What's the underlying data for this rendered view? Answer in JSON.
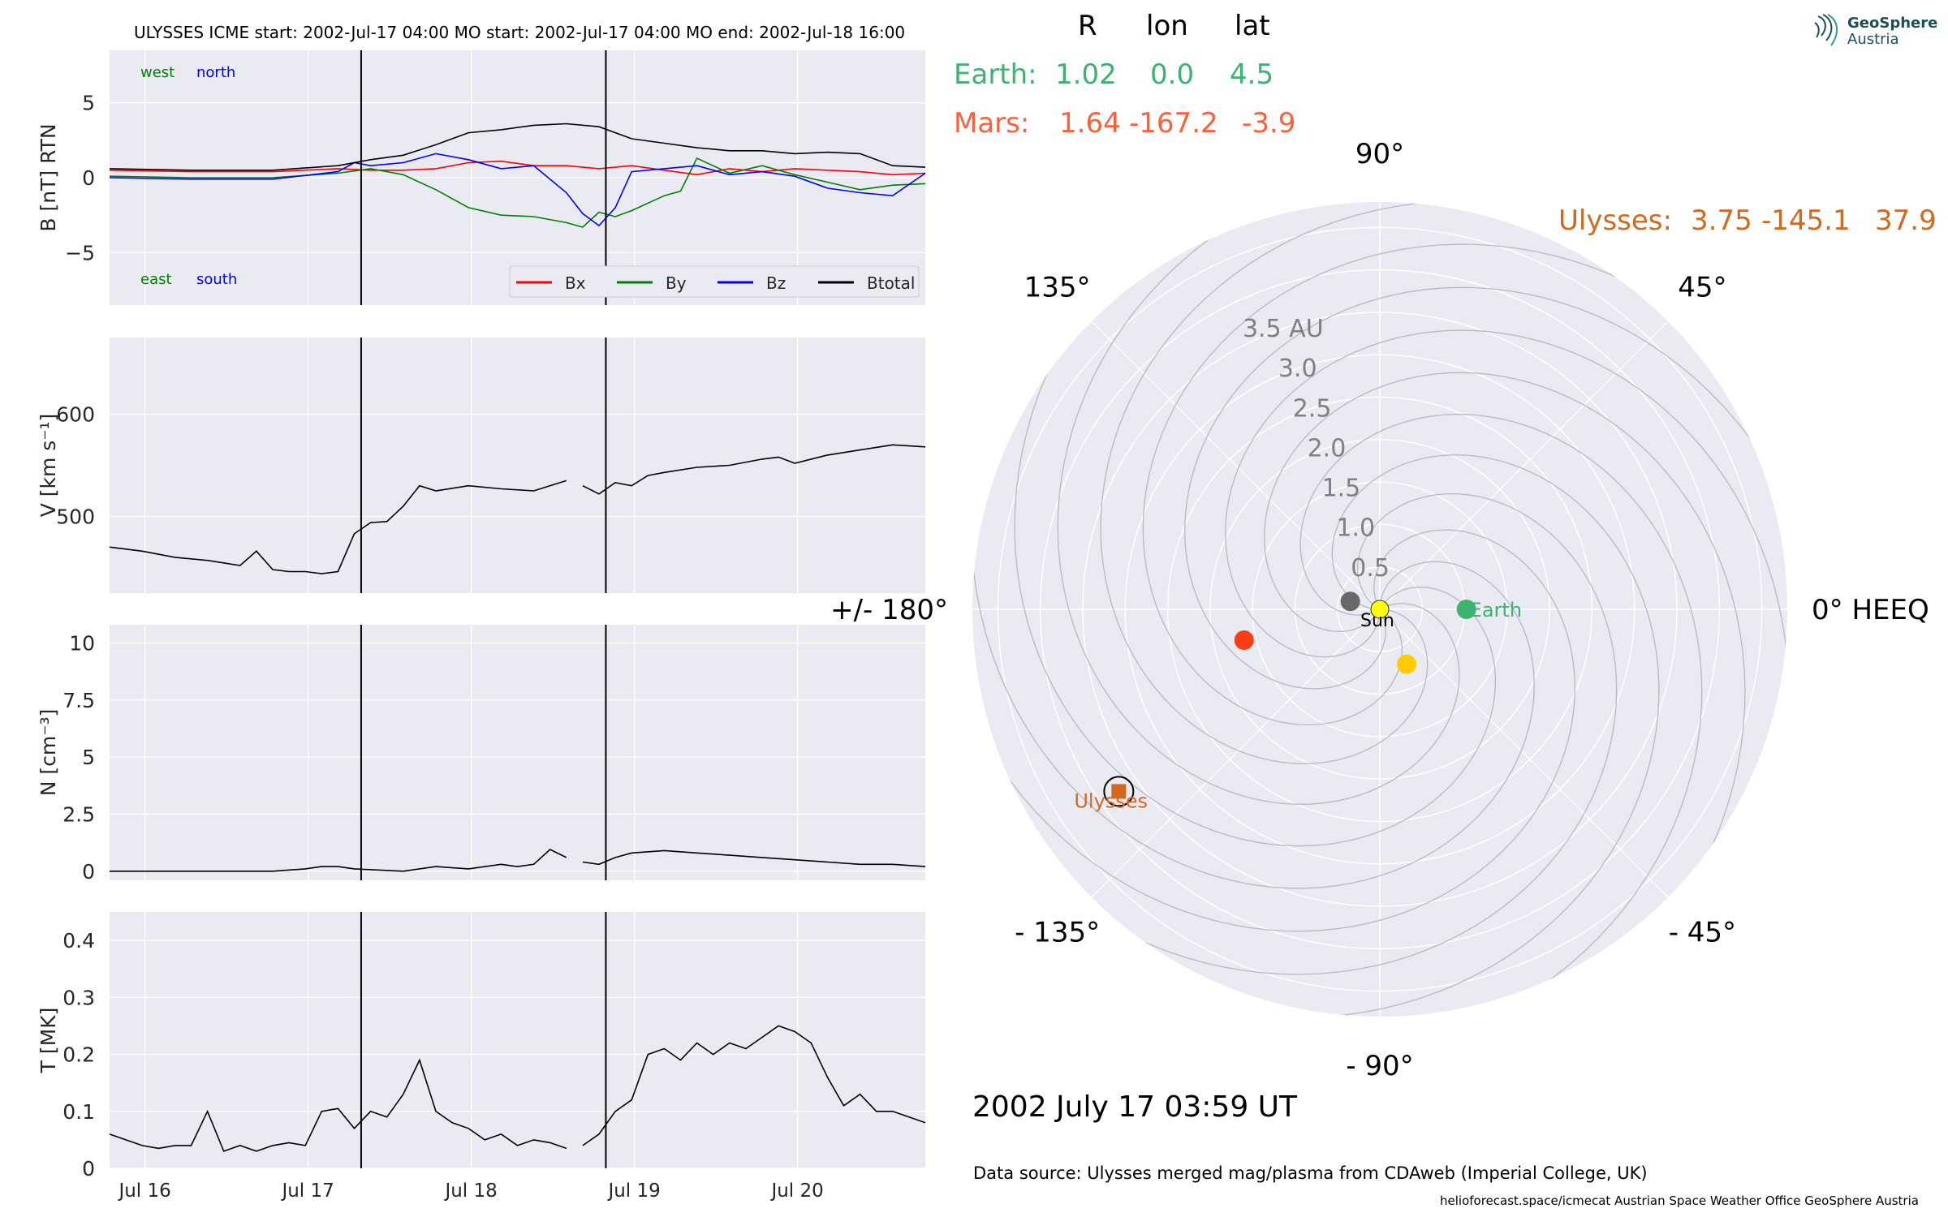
{
  "header": {
    "title": "ULYSSES    ICME start: 2002-Jul-17 04:00   MO start: 2002-Jul-17 04:00   MO end: 2002-Jul-18 16:00"
  },
  "position_table": {
    "col_headers": [
      "R",
      "lon",
      "lat"
    ],
    "earth": {
      "label": "Earth:",
      "values": [
        "1.02",
        "0.0",
        "4.5"
      ],
      "color": "#3cb371"
    },
    "mars": {
      "label": "Mars:",
      "values": [
        "1.64",
        "-167.2",
        "-3.9"
      ],
      "color": "#ff5f3c"
    },
    "ulysses": {
      "label": "Ulysses:",
      "values": [
        "3.75",
        "-145.1",
        "37.9"
      ],
      "color": "#d2691e"
    }
  },
  "logo": {
    "line1": "GeoSphere",
    "line2": "Austria",
    "icon": "geosphere-logo-icon"
  },
  "timestamp": "2002 July 17  03:59 UT",
  "data_source": "Data source: Ulysses merged mag/plasma from CDAweb (Imperial College, UK)",
  "footer_links": "helioforecast.space/icmecat   Austrian Space Weather Office   GeoSphere Austria",
  "colors": {
    "panel_bg": "#eaeaf2",
    "grid": "#ffffff",
    "bx": "#ff0000",
    "by": "#008000",
    "bz": "#0000ff",
    "btot": "#000000",
    "earth": "#3cb371",
    "mars": "#ff3c14",
    "ulysses": "#d2691e",
    "venus": "#ffcc00",
    "mercury": "#696969",
    "sun": "#ffff00"
  },
  "chart_data": [
    {
      "type": "line",
      "name": "B",
      "ylabel": "B [nT] RTN",
      "ylim": [
        -8.5,
        8.5
      ],
      "yticks": [
        -5,
        0,
        5
      ],
      "xlim": [
        0,
        5.0
      ],
      "x_unit": "days since 2002-Jul-15 15:00",
      "event_lines": [
        1.542,
        3.042
      ],
      "annotations": {
        "top_left": [
          "west",
          "north"
        ],
        "bottom_left": [
          "east",
          "south"
        ]
      },
      "legend": [
        "Bx",
        "By",
        "Bz",
        "Btotal"
      ],
      "series": [
        {
          "name": "Bx",
          "color": "#ff0000",
          "x": [
            0,
            0.5,
            1,
            1.4,
            1.6,
            1.8,
            2.0,
            2.2,
            2.4,
            2.6,
            2.8,
            3.0,
            3.2,
            3.4,
            3.6,
            3.8,
            4.0,
            4.2,
            4.4,
            4.6,
            4.8,
            5.0
          ],
          "y": [
            0.5,
            0.4,
            0.4,
            0.6,
            0.5,
            0.5,
            0.6,
            1.0,
            1.1,
            0.8,
            0.8,
            0.6,
            0.8,
            0.5,
            0.2,
            0.6,
            0.4,
            0.6,
            0.5,
            0.4,
            0.2,
            0.3
          ]
        },
        {
          "name": "By",
          "color": "#008000",
          "x": [
            0,
            0.5,
            1,
            1.4,
            1.6,
            1.8,
            2.0,
            2.2,
            2.4,
            2.6,
            2.8,
            2.9,
            3.0,
            3.1,
            3.2,
            3.4,
            3.5,
            3.6,
            3.8,
            4.0,
            4.2,
            4.4,
            4.6,
            4.8,
            5.0
          ],
          "y": [
            0.1,
            0.0,
            0.0,
            0.3,
            0.6,
            0.2,
            -0.8,
            -2.0,
            -2.5,
            -2.6,
            -3.0,
            -3.3,
            -2.3,
            -2.6,
            -2.2,
            -1.2,
            -0.9,
            1.3,
            0.3,
            0.8,
            0.2,
            -0.3,
            -0.8,
            -0.5,
            -0.4
          ]
        },
        {
          "name": "Bz",
          "color": "#0000ff",
          "x": [
            0,
            0.5,
            1,
            1.4,
            1.5,
            1.6,
            1.8,
            2.0,
            2.2,
            2.4,
            2.6,
            2.8,
            2.9,
            3.0,
            3.1,
            3.2,
            3.4,
            3.6,
            3.8,
            4.0,
            4.2,
            4.4,
            4.6,
            4.8,
            5.0
          ],
          "y": [
            0.0,
            -0.1,
            -0.1,
            0.4,
            1.0,
            0.8,
            1.0,
            1.6,
            1.2,
            0.6,
            0.8,
            -1.0,
            -2.4,
            -3.2,
            -2.0,
            0.4,
            0.6,
            0.8,
            0.2,
            0.4,
            0.1,
            -0.7,
            -1.0,
            -1.2,
            0.3
          ]
        },
        {
          "name": "Btotal",
          "color": "#000000",
          "x": [
            0,
            0.5,
            1,
            1.4,
            1.6,
            1.8,
            2.0,
            2.2,
            2.4,
            2.6,
            2.8,
            3.0,
            3.2,
            3.4,
            3.6,
            3.8,
            4.0,
            4.2,
            4.4,
            4.6,
            4.8,
            5.0
          ],
          "y": [
            0.6,
            0.5,
            0.5,
            0.8,
            1.2,
            1.5,
            2.2,
            3.0,
            3.2,
            3.5,
            3.6,
            3.4,
            2.6,
            2.3,
            2.0,
            1.8,
            1.8,
            1.6,
            1.7,
            1.6,
            0.8,
            0.7
          ]
        }
      ]
    },
    {
      "type": "line",
      "name": "V",
      "ylabel": "V [km s⁻¹]",
      "ylim": [
        425,
        675
      ],
      "yticks": [
        500,
        600
      ],
      "xlim": [
        0,
        5.0
      ],
      "event_lines": [
        1.542,
        3.042
      ],
      "series": [
        {
          "name": "V",
          "color": "#000000",
          "segments": [
            {
              "x": [
                0,
                0.2,
                0.4,
                0.6,
                0.8,
                0.9,
                1.0,
                1.1,
                1.2,
                1.3,
                1.4,
                1.5,
                1.6,
                1.7,
                1.8,
                1.9,
                2.0,
                2.2,
                2.4,
                2.6,
                2.8
              ],
              "y": [
                470,
                466,
                460,
                457,
                452,
                466,
                448,
                446,
                446,
                444,
                446,
                483,
                494,
                495,
                510,
                530,
                525,
                530,
                527,
                525,
                535
              ]
            },
            {
              "x": [
                2.9,
                3.0,
                3.1,
                3.2,
                3.3,
                3.4,
                3.6,
                3.8,
                4.0,
                4.1,
                4.2,
                4.4,
                4.6,
                4.8,
                5.0
              ],
              "y": [
                530,
                522,
                533,
                530,
                540,
                543,
                548,
                550,
                556,
                558,
                552,
                560,
                565,
                570,
                568
              ]
            }
          ]
        }
      ]
    },
    {
      "type": "line",
      "name": "N",
      "ylabel": "N [cm⁻³]",
      "ylim": [
        -0.4,
        10.8
      ],
      "yticks": [
        0.0,
        2.5,
        5.0,
        7.5,
        10.0
      ],
      "xlim": [
        0,
        5.0
      ],
      "event_lines": [
        1.542,
        3.042
      ],
      "series": [
        {
          "name": "N",
          "color": "#000000",
          "segments": [
            {
              "x": [
                0,
                0.5,
                1.0,
                1.2,
                1.3,
                1.4,
                1.5,
                1.8,
                2.0,
                2.2,
                2.4,
                2.5,
                2.6,
                2.7,
                2.8
              ],
              "y": [
                0.0,
                0.0,
                0.0,
                0.1,
                0.2,
                0.2,
                0.1,
                0.0,
                0.2,
                0.1,
                0.3,
                0.2,
                0.3,
                0.95,
                0.6
              ]
            },
            {
              "x": [
                2.9,
                3.0,
                3.1,
                3.2,
                3.4,
                3.6,
                3.8,
                4.0,
                4.2,
                4.4,
                4.6,
                4.8,
                5.0
              ],
              "y": [
                0.4,
                0.3,
                0.6,
                0.8,
                0.9,
                0.8,
                0.7,
                0.6,
                0.5,
                0.4,
                0.3,
                0.3,
                0.2
              ]
            }
          ]
        }
      ]
    },
    {
      "type": "line",
      "name": "T",
      "ylabel": "T [MK]",
      "ylim": [
        0,
        0.45
      ],
      "yticks": [
        0.0,
        0.1,
        0.2,
        0.3,
        0.4
      ],
      "xlim": [
        0,
        5.0
      ],
      "event_lines": [
        1.542,
        3.042
      ],
      "series": [
        {
          "name": "T",
          "color": "#000000",
          "segments": [
            {
              "x": [
                0,
                0.1,
                0.2,
                0.3,
                0.4,
                0.5,
                0.6,
                0.7,
                0.8,
                0.9,
                1.0,
                1.1,
                1.2,
                1.3,
                1.4,
                1.5,
                1.6,
                1.7,
                1.8,
                1.9,
                2.0,
                2.1,
                2.2,
                2.3,
                2.4,
                2.5,
                2.6,
                2.7,
                2.8
              ],
              "y": [
                0.06,
                0.05,
                0.04,
                0.035,
                0.04,
                0.04,
                0.1,
                0.03,
                0.04,
                0.03,
                0.04,
                0.045,
                0.04,
                0.1,
                0.105,
                0.07,
                0.1,
                0.09,
                0.13,
                0.19,
                0.1,
                0.08,
                0.07,
                0.05,
                0.06,
                0.04,
                0.05,
                0.045,
                0.035
              ]
            },
            {
              "x": [
                2.9,
                3.0,
                3.1,
                3.2,
                3.3,
                3.4,
                3.5,
                3.6,
                3.7,
                3.8,
                3.9,
                4.0,
                4.1,
                4.2,
                4.3,
                4.4,
                4.5,
                4.6,
                4.7,
                4.8,
                4.9,
                5.0
              ],
              "y": [
                0.04,
                0.06,
                0.1,
                0.12,
                0.2,
                0.21,
                0.19,
                0.22,
                0.2,
                0.22,
                0.21,
                0.23,
                0.25,
                0.24,
                0.22,
                0.16,
                0.11,
                0.13,
                0.1,
                0.1,
                0.09,
                0.08
              ]
            }
          ]
        }
      ]
    },
    {
      "type": "polar",
      "name": "planet-positions",
      "angle_labels": [
        "90°",
        "45°",
        "0° HEEQ",
        "- 45°",
        "- 90°",
        "- 135°",
        "+/- 180°",
        "135°"
      ],
      "radial_labels": [
        "0.5",
        "1.0",
        "1.5",
        "2.0",
        "2.5",
        "3.0",
        "3.5 AU"
      ],
      "rmax": 4.8,
      "bodies": [
        {
          "name": "Sun",
          "r": 0,
          "lon": 0,
          "label": "Sun",
          "color": "#ffff00"
        },
        {
          "name": "Earth",
          "r": 1.02,
          "lon": 0.0,
          "label": "Earth",
          "color": "#3cb371"
        },
        {
          "name": "Mars",
          "r": 1.64,
          "lon": -167.2,
          "label": "",
          "color": "#ff3c14"
        },
        {
          "name": "Ulysses",
          "r": 3.75,
          "lon": -145.1,
          "label": "Ulysses",
          "color": "#d2691e"
        },
        {
          "name": "Venus",
          "r": 0.72,
          "lon": -64,
          "label": "",
          "color": "#ffcc00"
        },
        {
          "name": "Mercury",
          "r": 0.36,
          "lon": 165,
          "label": "",
          "color": "#696969"
        }
      ]
    }
  ]
}
